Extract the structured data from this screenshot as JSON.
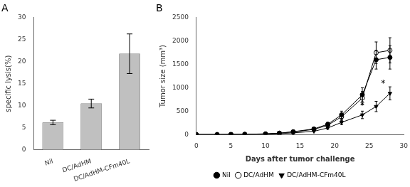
{
  "chart_data": [
    {
      "type": "bar",
      "title": "A",
      "categories": [
        "Nil",
        "DC/AdHM",
        "DC/AdHM-CFm40L"
      ],
      "values": [
        6.2,
        10.5,
        21.8
      ],
      "errors": [
        0.5,
        1.0,
        4.5
      ],
      "color": "#c0c0c0",
      "ylabel": "specific lysis(%)",
      "ylim": [
        0,
        30
      ],
      "yticks": [
        0,
        5,
        10,
        15,
        20,
        25,
        30
      ],
      "grid": false
    },
    {
      "type": "line",
      "title": "B",
      "x": [
        0,
        3,
        5,
        7,
        10,
        12,
        14,
        17,
        19,
        21,
        24,
        26,
        28
      ],
      "series": [
        {
          "name": "Nil",
          "color": "#000000",
          "marker": "circle",
          "values": [
            0,
            0,
            2,
            5,
            15,
            30,
            60,
            120,
            220,
            420,
            850,
            1600,
            1650
          ],
          "errors": [
            0,
            0,
            1,
            2,
            5,
            8,
            12,
            20,
            40,
            80,
            150,
            200,
            250
          ]
        },
        {
          "name": "DC/AdHM",
          "color": "#000000",
          "marker": "open_circle",
          "values": [
            0,
            0,
            2,
            5,
            12,
            28,
            55,
            110,
            200,
            380,
            780,
            1750,
            1800
          ],
          "errors": [
            0,
            0,
            1,
            2,
            5,
            7,
            10,
            20,
            38,
            75,
            140,
            230,
            270
          ]
        },
        {
          "name": "DC/AdHM-CFm40L",
          "color": "#000000",
          "marker": "triangle_down",
          "values": [
            0,
            0,
            1,
            3,
            8,
            18,
            35,
            70,
            140,
            260,
            420,
            600,
            880
          ],
          "errors": [
            0,
            0,
            1,
            1,
            3,
            5,
            7,
            12,
            25,
            50,
            80,
            110,
            140
          ]
        }
      ],
      "xlabel": "Days after tumor challenge",
      "ylabel": "Tumor size (mm³)",
      "xlim": [
        0,
        30
      ],
      "xticks": [
        0,
        5,
        10,
        15,
        20,
        25,
        30
      ],
      "ylim": [
        0,
        2500
      ],
      "yticks": [
        0,
        500,
        1000,
        1500,
        2000,
        2500
      ],
      "annotations": [
        {
          "text": "*",
          "x": 24,
          "y": 520
        },
        {
          "text": "*",
          "x": 27,
          "y": 1000
        }
      ],
      "legend": "bottom",
      "grid": false
    }
  ]
}
